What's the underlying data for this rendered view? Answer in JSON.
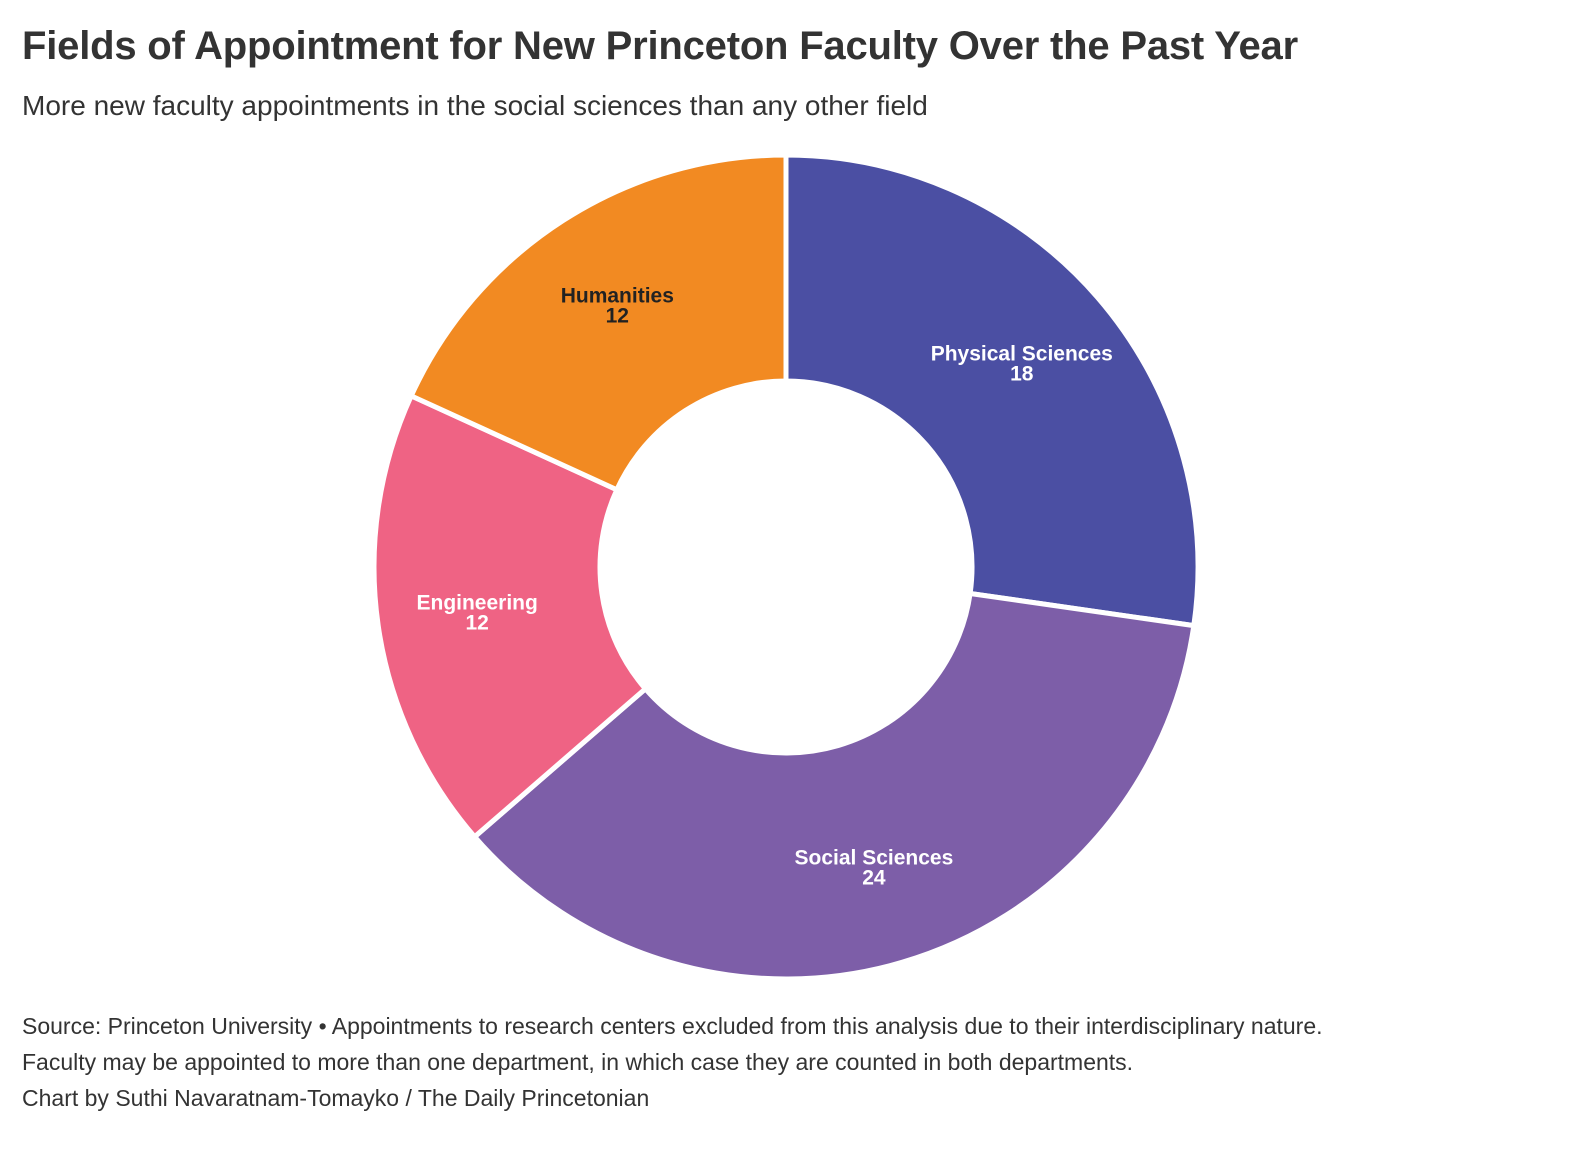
{
  "title": "Fields of Appointment for New Princeton Faculty Over the Past Year",
  "subtitle": "More new faculty appointments in the social sciences than any other field",
  "footer": {
    "line1": "Source: Princeton University • Appointments to research centers excluded from this analysis due to their interdisciplinary nature.",
    "line2": "Faculty may be appointed to more than one department, in which case they are counted in both departments.",
    "line3": "Chart by Suthi Navaratnam-Tomayko / The Daily Princetonian"
  },
  "chart_data": {
    "type": "pie",
    "variant": "donut",
    "title": "Fields of Appointment for New Princeton Faculty Over the Past Year",
    "subtitle": "More new faculty appointments in the social sciences than any other field",
    "slices": [
      {
        "label": "Physical Sciences",
        "value": 18,
        "color": "#4b4fa3",
        "label_color": "#ffffff"
      },
      {
        "label": "Social Sciences",
        "value": 24,
        "color": "#7d5ea8",
        "label_color": "#ffffff"
      },
      {
        "label": "Engineering",
        "value": 12,
        "color": "#ef6384",
        "label_color": "#ffffff"
      },
      {
        "label": "Humanities",
        "value": 12,
        "color": "#f28a22",
        "label_color": "#222222"
      }
    ],
    "start_angle": "12 o'clock",
    "direction": "clockwise",
    "legend": "none"
  }
}
